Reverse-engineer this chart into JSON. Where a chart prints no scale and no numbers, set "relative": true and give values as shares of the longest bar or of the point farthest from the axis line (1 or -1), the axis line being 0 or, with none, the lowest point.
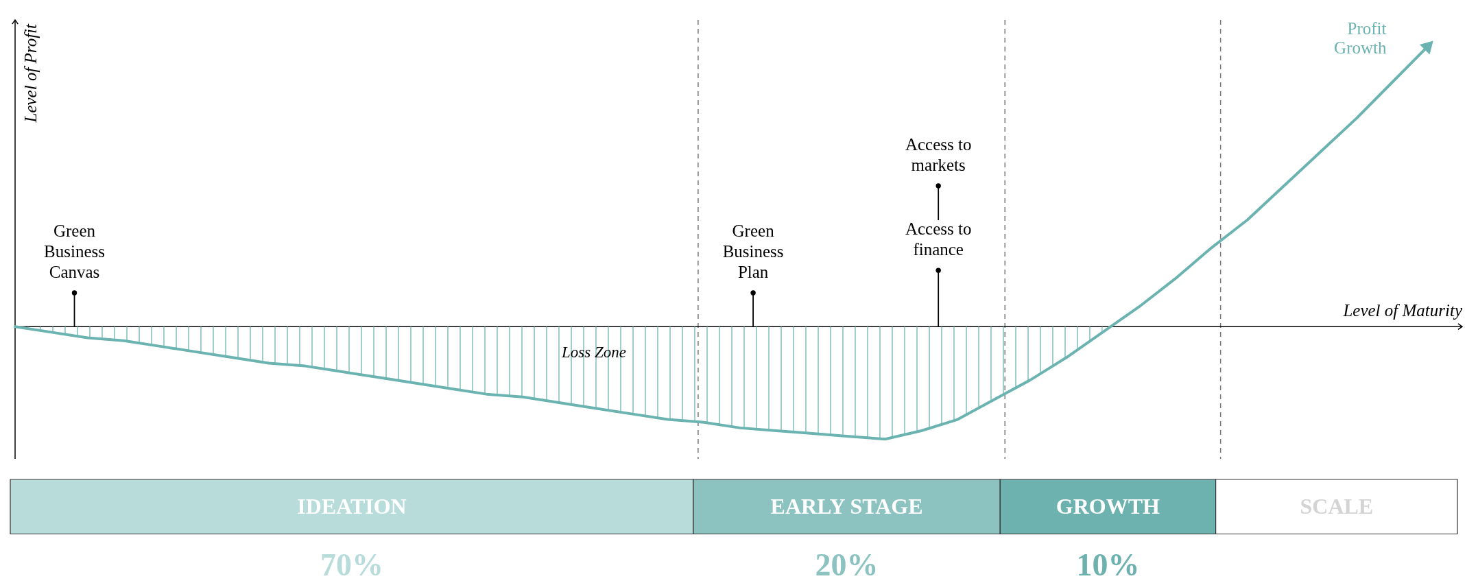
{
  "chart_data": [
    {
      "type": "line",
      "relative": true,
      "tick_labels": false,
      "xlabel": "Level of Maturity",
      "ylabel": "Level of Profit",
      "categories": [
        null,
        null,
        null,
        null,
        null,
        null,
        null,
        null,
        null,
        null,
        null,
        null,
        null,
        null,
        null,
        null,
        null,
        null,
        null,
        null,
        null,
        null,
        null,
        null,
        null,
        null,
        null,
        null,
        null,
        null,
        null,
        null,
        null,
        null,
        null,
        null,
        null,
        null,
        null,
        null
      ],
      "series": [
        {
          "name": "Profit Growth",
          "color": "#6bb3b0",
          "values": [
            0,
            -0.02,
            -0.04,
            -0.05,
            -0.07,
            -0.09,
            -0.11,
            -0.13,
            -0.14,
            -0.16,
            -0.18,
            -0.2,
            -0.22,
            -0.24,
            -0.25,
            -0.27,
            -0.29,
            -0.31,
            -0.33,
            -0.34,
            -0.36,
            -0.37,
            -0.38,
            -0.39,
            -0.4,
            -0.37,
            -0.33,
            -0.26,
            -0.19,
            -0.11,
            -0.02,
            0.07,
            0.17,
            0.28,
            0.38,
            0.5,
            0.62,
            0.74,
            0.87,
            1
          ]
        },
        {
          "type": "area",
          "color": "#6bb3b0",
          "values": [
            0,
            -0.02,
            -0.04,
            -0.05,
            -0.07,
            -0.09,
            -0.11,
            -0.13,
            -0.14,
            -0.16,
            -0.18,
            -0.2,
            -0.22,
            -0.24,
            -0.25,
            -0.27,
            -0.29,
            -0.31,
            -0.33,
            -0.34,
            -0.36,
            -0.37,
            -0.38,
            -0.39,
            -0.4,
            -0.37,
            -0.33,
            -0.26,
            -0.19,
            -0.11,
            -0.02,
            null,
            null,
            null,
            null,
            null,
            null,
            null,
            null,
            null
          ]
        }
      ],
      "annotations": [
        {
          "text": "Green Business Canvas",
          "y": 0.12
        },
        {
          "text": "Green Business Plan",
          "y": 0.12
        },
        {
          "text": "Access to finance",
          "y": 0.2
        },
        {
          "text": "Access to markets",
          "y": 0.5
        },
        "Loss Zone"
      ]
    },
    {
      "type": "other",
      "categories": [
        "IDEATION",
        "EARLY STAGE",
        "GROWTH",
        "SCALE"
      ],
      "colors": [
        "#b7dcda",
        "#8cc3c1",
        "#6db2af",
        "#ffffff"
      ],
      "annotations": [
        "70%",
        "20%",
        "10%"
      ]
    }
  ]
}
